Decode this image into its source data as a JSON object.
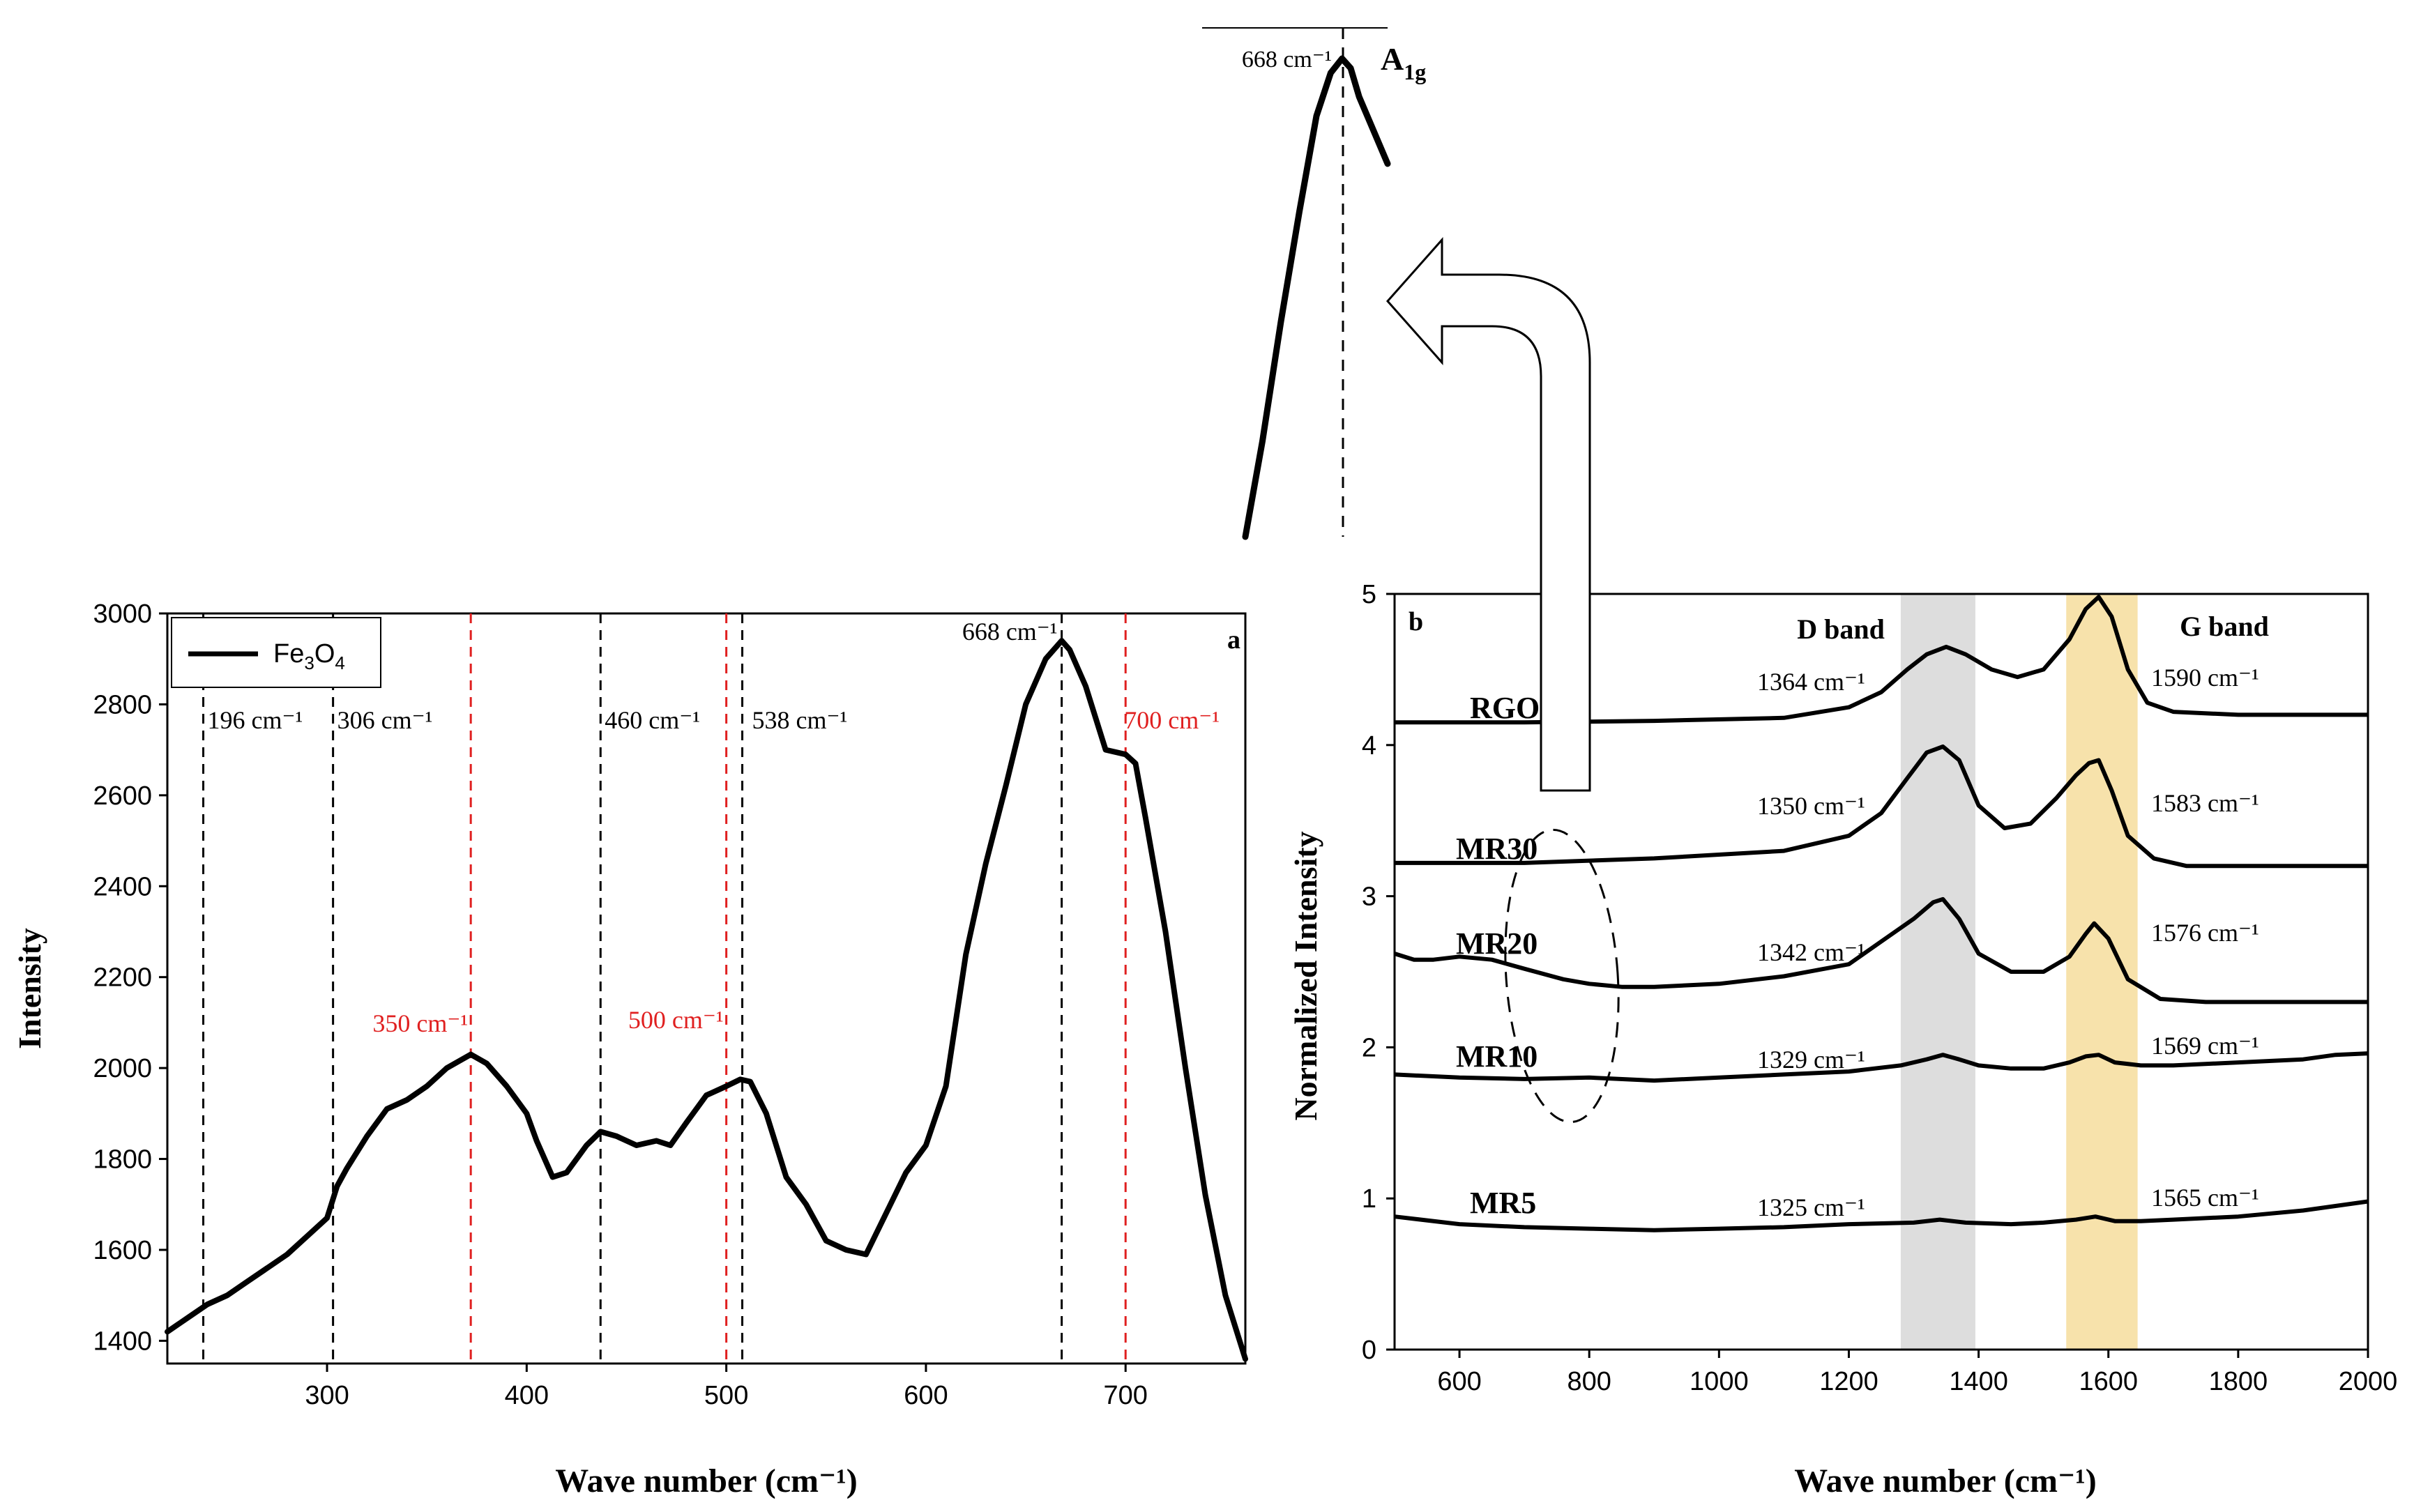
{
  "chart_data": [
    {
      "type": "line",
      "panel_label": "a",
      "ylabel": "Intensity",
      "xlabel": "Wave number (cm⁻¹)",
      "xlim": [
        220,
        760
      ],
      "ylim": [
        1350,
        3000
      ],
      "xticks": [
        300,
        400,
        500,
        600,
        700
      ],
      "yticks": [
        1400,
        1600,
        1800,
        2000,
        2200,
        2400,
        2600,
        2800,
        3000
      ],
      "legend": {
        "label": "Fe",
        "sub1": "3",
        "mid": "O",
        "sub2": "4",
        "placement": "top-left"
      },
      "series": [
        {
          "name": "Fe3O4",
          "x": [
            220,
            230,
            240,
            250,
            260,
            270,
            280,
            290,
            300,
            305,
            310,
            320,
            330,
            340,
            350,
            360,
            372,
            380,
            390,
            400,
            405,
            413,
            420,
            430,
            437,
            445,
            455,
            465,
            472,
            480,
            490,
            500,
            507,
            512,
            520,
            530,
            540,
            550,
            560,
            570,
            580,
            590,
            600,
            610,
            620,
            630,
            640,
            650,
            660,
            668,
            672,
            680,
            690,
            700,
            705,
            710,
            720,
            730,
            740,
            750,
            760
          ],
          "y": [
            1420,
            1450,
            1480,
            1500,
            1530,
            1560,
            1590,
            1630,
            1670,
            1740,
            1780,
            1850,
            1910,
            1930,
            1960,
            2000,
            2030,
            2010,
            1960,
            1900,
            1840,
            1760,
            1770,
            1830,
            1860,
            1850,
            1830,
            1840,
            1830,
            1880,
            1940,
            1960,
            1975,
            1970,
            1900,
            1760,
            1700,
            1620,
            1600,
            1590,
            1680,
            1770,
            1830,
            1960,
            2250,
            2450,
            2620,
            2800,
            2900,
            2940,
            2920,
            2840,
            2700,
            2690,
            2670,
            2550,
            2300,
            2000,
            1720,
            1500,
            1360
          ]
        }
      ],
      "annotations": [
        {
          "x": 238,
          "label": "196 cm⁻¹",
          "color": "#000000"
        },
        {
          "x": 303,
          "label": "306 cm⁻¹",
          "color": "#000000"
        },
        {
          "x": 372,
          "label": "350 cm⁻¹",
          "color": "#e02020"
        },
        {
          "x": 437,
          "label": "460 cm⁻¹",
          "color": "#000000"
        },
        {
          "x": 500,
          "label": "500 cm⁻¹",
          "color": "#e02020"
        },
        {
          "x": 508,
          "label": "538 cm⁻¹",
          "color": "#000000"
        },
        {
          "x": 668,
          "label": "668 cm⁻¹",
          "color": "#000000"
        },
        {
          "x": 700,
          "label": "700 cm⁻¹",
          "color": "#e02020"
        }
      ]
    },
    {
      "type": "line",
      "panel_label": "b",
      "ylabel": "Normalized Intensity",
      "xlabel": "Wave number (cm⁻¹)",
      "xlim": [
        500,
        2000
      ],
      "ylim": [
        0,
        5
      ],
      "xticks": [
        600,
        800,
        1000,
        1200,
        1400,
        1600,
        1800,
        2000
      ],
      "yticks": [
        0,
        1,
        2,
        3,
        4,
        5
      ],
      "bands": [
        {
          "name": "D band",
          "x0": 1280,
          "x1": 1395,
          "color": "#d9d9d9"
        },
        {
          "name": "G band",
          "x0": 1535,
          "x1": 1645,
          "color": "#f6dfa2"
        }
      ],
      "series": [
        {
          "name": "RGO",
          "d_label": "1364 cm⁻¹",
          "g_label": "1590 cm⁻¹",
          "x": [
            500,
            700,
            900,
            1100,
            1200,
            1250,
            1290,
            1320,
            1350,
            1380,
            1420,
            1460,
            1500,
            1540,
            1565,
            1585,
            1605,
            1630,
            1660,
            1700,
            1800,
            2000
          ],
          "y": [
            4.15,
            4.15,
            4.16,
            4.18,
            4.25,
            4.35,
            4.5,
            4.6,
            4.65,
            4.6,
            4.5,
            4.45,
            4.5,
            4.7,
            4.9,
            4.98,
            4.85,
            4.5,
            4.28,
            4.22,
            4.2,
            4.2
          ]
        },
        {
          "name": "MR30",
          "d_label": "1350 cm⁻¹",
          "g_label": "1583 cm⁻¹",
          "x": [
            500,
            700,
            900,
            1100,
            1200,
            1250,
            1290,
            1320,
            1345,
            1370,
            1400,
            1440,
            1480,
            1520,
            1550,
            1570,
            1585,
            1605,
            1630,
            1670,
            1720,
            2000
          ],
          "y": [
            3.22,
            3.22,
            3.25,
            3.3,
            3.4,
            3.55,
            3.78,
            3.95,
            3.99,
            3.9,
            3.6,
            3.45,
            3.48,
            3.65,
            3.8,
            3.88,
            3.9,
            3.7,
            3.4,
            3.25,
            3.2,
            3.2
          ]
        },
        {
          "name": "MR20",
          "d_label": "1342 cm⁻¹",
          "g_label": "1576 cm⁻¹",
          "x": [
            500,
            530,
            560,
            600,
            650,
            700,
            760,
            800,
            850,
            900,
            1000,
            1100,
            1200,
            1250,
            1300,
            1330,
            1345,
            1370,
            1400,
            1450,
            1500,
            1540,
            1565,
            1578,
            1600,
            1630,
            1680,
            1750,
            2000
          ],
          "y": [
            2.62,
            2.58,
            2.58,
            2.6,
            2.58,
            2.52,
            2.45,
            2.42,
            2.4,
            2.4,
            2.42,
            2.47,
            2.55,
            2.7,
            2.85,
            2.96,
            2.98,
            2.85,
            2.62,
            2.5,
            2.5,
            2.6,
            2.75,
            2.82,
            2.72,
            2.45,
            2.32,
            2.3,
            2.3
          ]
        },
        {
          "name": "MR10",
          "d_label": "1329 cm⁻¹",
          "g_label": "1569 cm⁻¹",
          "x": [
            500,
            600,
            700,
            800,
            900,
            1000,
            1100,
            1200,
            1280,
            1320,
            1345,
            1370,
            1400,
            1450,
            1500,
            1540,
            1565,
            1585,
            1610,
            1650,
            1700,
            1800,
            1900,
            1950,
            2000
          ],
          "y": [
            1.82,
            1.8,
            1.79,
            1.8,
            1.78,
            1.8,
            1.82,
            1.84,
            1.88,
            1.92,
            1.95,
            1.92,
            1.88,
            1.86,
            1.86,
            1.9,
            1.94,
            1.95,
            1.9,
            1.88,
            1.88,
            1.9,
            1.92,
            1.95,
            1.96
          ]
        },
        {
          "name": "MR5",
          "d_label": "1325 cm⁻¹",
          "g_label": "1565 cm⁻¹",
          "x": [
            500,
            600,
            700,
            800,
            900,
            1000,
            1100,
            1200,
            1300,
            1340,
            1380,
            1450,
            1500,
            1550,
            1580,
            1610,
            1650,
            1700,
            1800,
            1900,
            2000
          ],
          "y": [
            0.88,
            0.83,
            0.81,
            0.8,
            0.79,
            0.8,
            0.81,
            0.83,
            0.84,
            0.86,
            0.84,
            0.83,
            0.84,
            0.86,
            0.88,
            0.85,
            0.85,
            0.86,
            0.88,
            0.92,
            0.98
          ]
        }
      ]
    },
    {
      "type": "line",
      "panel_label": "inset",
      "peak_label": "668 cm⁻¹",
      "mode_main": "A",
      "mode_sub": "1g",
      "series": [
        {
          "name": "Fe3O4 zoom",
          "x": [
            0.0,
            0.12,
            0.25,
            0.38,
            0.5,
            0.6,
            0.68,
            0.74,
            0.8,
            0.9,
            1.0
          ],
          "y": [
            0.0,
            0.2,
            0.45,
            0.68,
            0.88,
            0.97,
            1.0,
            0.98,
            0.92,
            0.85,
            0.78
          ]
        }
      ]
    }
  ]
}
